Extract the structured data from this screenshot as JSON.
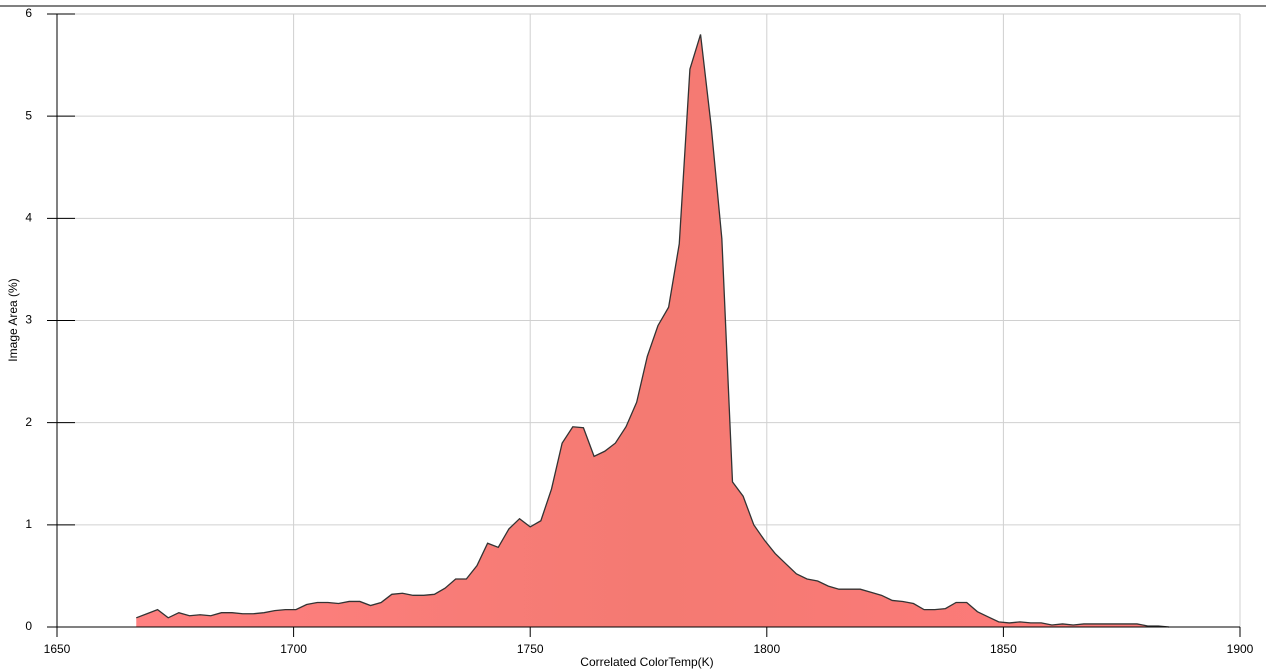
{
  "chart_data": {
    "type": "area",
    "xlabel": "Correlated ColorTemp(K)",
    "ylabel": "Image Area (%)",
    "color": "#ff7b7b",
    "line_color": "#333333",
    "xlim": [
      1650,
      1900
    ],
    "xticks": [
      1650,
      1700,
      1750,
      1800,
      1850,
      1900
    ],
    "ylim": [
      0,
      6
    ],
    "yticks": [
      0,
      1,
      2,
      3,
      4,
      5,
      6
    ],
    "grid": true,
    "x": [
      1666.75,
      1669,
      1671.25,
      1673.5,
      1675.75,
      1678,
      1680.25,
      1682.5,
      1684.75,
      1687,
      1689.25,
      1691.5,
      1693.75,
      1696,
      1698.25,
      1700.5,
      1702.75,
      1705,
      1707.25,
      1709.5,
      1711.75,
      1714,
      1716.25,
      1718.5,
      1720.75,
      1723,
      1725.25,
      1727.5,
      1729.75,
      1732,
      1734.25,
      1736.5,
      1738.75,
      1741,
      1743.25,
      1745.5,
      1747.75,
      1750,
      1752.25,
      1754.5,
      1756.75,
      1759,
      1761.25,
      1763.5,
      1765.75,
      1768,
      1770.25,
      1772.5,
      1774.75,
      1777,
      1779.25,
      1781.5,
      1783.75,
      1786,
      1788.25,
      1790.5,
      1792.75,
      1795,
      1797.25,
      1799.5,
      1801.75,
      1804,
      1806.25,
      1808.5,
      1810.75,
      1813,
      1815.25,
      1817.5,
      1819.75,
      1822,
      1824.25,
      1826.5,
      1828.75,
      1831,
      1833.25,
      1835.5,
      1837.75,
      1840,
      1842.25,
      1844.5,
      1846.75,
      1849,
      1851.25,
      1853.5,
      1855.75,
      1858,
      1860.25,
      1862.5,
      1864.75,
      1867,
      1869.25,
      1871.5,
      1873.75,
      1876,
      1878.25,
      1880.5,
      1882.75,
      1885
    ],
    "values": [
      0.09,
      0.13,
      0.17,
      0.09,
      0.14,
      0.11,
      0.12,
      0.11,
      0.14,
      0.14,
      0.13,
      0.13,
      0.14,
      0.16,
      0.17,
      0.17,
      0.22,
      0.24,
      0.24,
      0.23,
      0.25,
      0.25,
      0.21,
      0.24,
      0.32,
      0.33,
      0.31,
      0.31,
      0.32,
      0.38,
      0.47,
      0.47,
      0.6,
      0.82,
      0.78,
      0.96,
      1.06,
      0.98,
      1.04,
      1.35,
      1.8,
      1.96,
      1.95,
      1.67,
      1.72,
      1.8,
      1.96,
      2.2,
      2.65,
      2.95,
      3.13,
      3.75,
      5.46,
      5.8,
      4.9,
      3.8,
      1.42,
      1.28,
      1.0,
      0.85,
      0.72,
      0.62,
      0.52,
      0.47,
      0.45,
      0.4,
      0.37,
      0.37,
      0.37,
      0.34,
      0.31,
      0.26,
      0.25,
      0.23,
      0.17,
      0.17,
      0.18,
      0.24,
      0.24,
      0.15,
      0.1,
      0.05,
      0.04,
      0.05,
      0.04,
      0.04,
      0.02,
      0.03,
      0.02,
      0.03,
      0.03,
      0.03,
      0.03,
      0.03,
      0.03,
      0.01,
      0.01,
      0.0
    ]
  }
}
